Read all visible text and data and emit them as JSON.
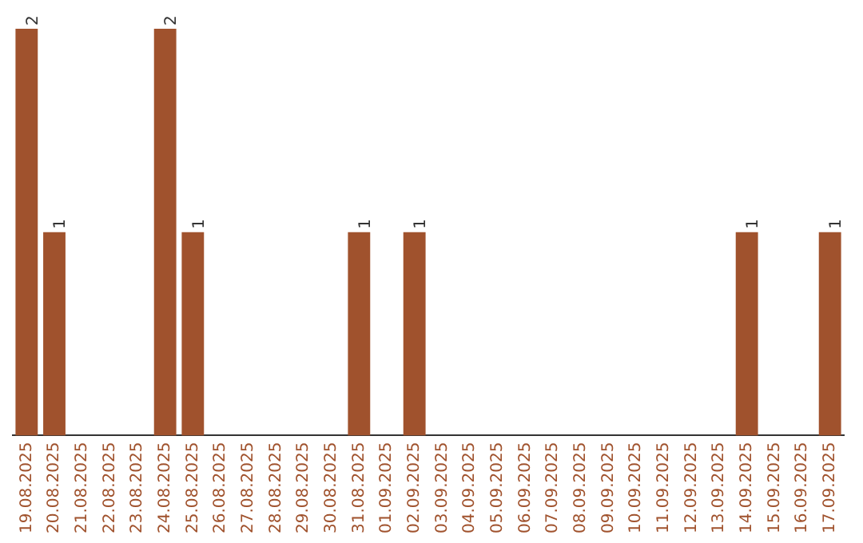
{
  "chart_data": {
    "type": "bar",
    "categories": [
      "19.08.2025",
      "20.08.2025",
      "21.08.2025",
      "22.08.2025",
      "23.08.2025",
      "24.08.2025",
      "25.08.2025",
      "26.08.2025",
      "27.08.2025",
      "28.08.2025",
      "29.08.2025",
      "30.08.2025",
      "31.08.2025",
      "01.09.2025",
      "02.09.2025",
      "03.09.2025",
      "04.09.2025",
      "05.09.2025",
      "06.09.2025",
      "07.09.2025",
      "08.09.2025",
      "09.09.2025",
      "10.09.2025",
      "11.09.2025",
      "12.09.2025",
      "13.09.2025",
      "14.09.2025",
      "15.09.2025",
      "16.09.2025",
      "17.09.2025"
    ],
    "values": [
      2,
      1,
      0,
      0,
      0,
      2,
      1,
      0,
      0,
      0,
      0,
      0,
      1,
      0,
      1,
      0,
      0,
      0,
      0,
      0,
      0,
      0,
      0,
      0,
      0,
      0,
      1,
      0,
      0,
      1
    ],
    "value_labels": [
      "2",
      "1",
      null,
      null,
      null,
      "2",
      "1",
      null,
      null,
      null,
      null,
      null,
      "1",
      null,
      "1",
      null,
      null,
      null,
      null,
      null,
      null,
      null,
      null,
      null,
      null,
      null,
      "1",
      null,
      null,
      "1"
    ],
    "color": "#a0522d",
    "ylim": [
      0,
      2
    ],
    "tick_labels": "x",
    "grid": false,
    "legend": false
  }
}
